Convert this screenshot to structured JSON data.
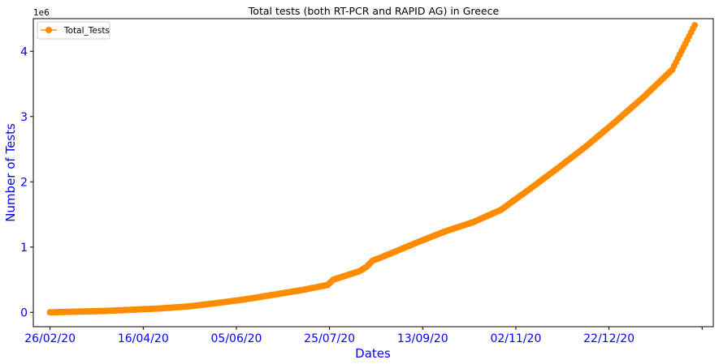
{
  "chart_data": {
    "type": "line",
    "title": "Total tests (both RT-PCR and RAPID AG) in Greece",
    "xlabel": "Dates",
    "ylabel": "Number of Tests",
    "y_offset_text": "1e6",
    "x_tick_labels": [
      "26/02/20",
      "16/04/20",
      "05/06/20",
      "25/07/20",
      "13/09/20",
      "02/11/20",
      "22/12/20",
      ""
    ],
    "x_ticks": [
      "2020-02-26",
      "2020-04-16",
      "2020-06-05",
      "2020-07-25",
      "2020-09-13",
      "2020-11-02",
      "2020-12-22",
      "2021-02-10"
    ],
    "y_ticks": [
      0,
      1,
      2,
      3,
      4
    ],
    "xlim": [
      "2020-02-17",
      "2021-02-16"
    ],
    "ylim": [
      -0.22,
      4.5
    ],
    "legend": {
      "position": "upper left",
      "entries": [
        "Total_Tests"
      ]
    },
    "grid": false,
    "colors": {
      "series": "#ff8c00",
      "tick_labels": "#0000ff",
      "axis_labels": "#0000ff"
    },
    "series": [
      {
        "name": "Total_Tests",
        "marker": "circle",
        "x": [
          "2020-02-26",
          "2020-03-10",
          "2020-03-25",
          "2020-04-10",
          "2020-04-25",
          "2020-05-10",
          "2020-05-25",
          "2020-06-10",
          "2020-06-25",
          "2020-07-10",
          "2020-07-24",
          "2020-07-27",
          "2020-08-10",
          "2020-08-14",
          "2020-08-17",
          "2020-08-25",
          "2020-09-10",
          "2020-09-25",
          "2020-10-10",
          "2020-10-25",
          "2020-11-10",
          "2020-11-25",
          "2020-12-10",
          "2020-12-25",
          "2021-01-10",
          "2021-01-25",
          "2021-02-06"
        ],
        "y": [
          0.0,
          0.01,
          0.02,
          0.04,
          0.06,
          0.09,
          0.14,
          0.2,
          0.27,
          0.34,
          0.42,
          0.5,
          0.63,
          0.7,
          0.79,
          0.88,
          1.07,
          1.24,
          1.38,
          1.57,
          1.9,
          2.22,
          2.55,
          2.91,
          3.31,
          3.72,
          4.4
        ]
      }
    ]
  }
}
